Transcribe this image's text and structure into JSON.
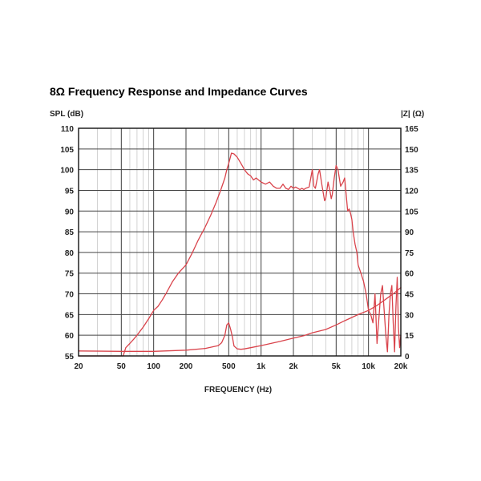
{
  "chart_data": {
    "type": "line",
    "title": "8Ω Frequency Response and Impedance Curves",
    "xlabel": "FREQUENCY (Hz)",
    "ylabel_left": "SPL (dB)",
    "ylabel_right": "|Z| (Ω)",
    "x_scale": "log",
    "xlim": [
      20,
      20000
    ],
    "ylim_left": [
      55,
      110
    ],
    "ylim_right": [
      0,
      165
    ],
    "x_tick_values": [
      20,
      50,
      100,
      200,
      500,
      1000,
      2000,
      5000,
      10000,
      20000
    ],
    "x_tick_labels": [
      "20",
      "50",
      "100",
      "200",
      "500",
      "1k",
      "2k",
      "5k",
      "10k",
      "20k"
    ],
    "y_left_ticks": [
      "110",
      "105",
      "100",
      "95",
      "90",
      "85",
      "80",
      "75",
      "70",
      "65",
      "60",
      "55"
    ],
    "y_right_ticks": [
      "165",
      "150",
      "135",
      "120",
      "105",
      "90",
      "75",
      "60",
      "45",
      "30",
      "15",
      "0"
    ],
    "grid": true,
    "line_color": "#d9434b",
    "series": [
      {
        "axis": "left",
        "x": [
          20,
          52,
          55,
          60,
          65,
          70,
          80,
          90,
          100,
          110,
          120,
          130,
          150,
          170,
          200,
          230,
          260,
          300,
          340,
          380,
          420,
          460,
          480,
          500,
          530,
          560,
          600,
          650,
          700,
          750,
          800,
          850,
          900,
          1000,
          1100,
          1200,
          1300,
          1400,
          1500,
          1600,
          1700,
          1800,
          1900,
          2000,
          2100,
          2200,
          2300,
          2400,
          2500,
          2600,
          2800,
          3000,
          3100,
          3200,
          3400,
          3500,
          3700,
          3900,
          4000,
          4200,
          4400,
          4500,
          4600,
          4800,
          5000,
          5200,
          5500,
          5800,
          6000,
          6200,
          6400,
          6600,
          6800,
          7000,
          7200,
          7500,
          7800,
          8000,
          8500,
          9000,
          9500,
          10000,
          10500,
          11000,
          11500,
          12000,
          12500,
          13000,
          13500,
          14000,
          14500,
          15000,
          15500,
          16000,
          16500,
          17000,
          17500,
          18000,
          18500,
          19000,
          19500,
          20000
        ],
        "y": [
          55,
          55,
          57,
          58,
          59,
          60,
          62,
          64,
          66,
          67,
          68.5,
          70,
          73,
          75,
          77,
          80,
          83,
          86,
          89,
          92,
          95,
          98,
          100,
          101.5,
          104,
          103.8,
          103,
          101.5,
          100,
          99,
          98.5,
          97.5,
          98,
          97,
          96.5,
          97,
          96,
          95.5,
          95.5,
          96.5,
          95.5,
          95.2,
          96,
          95.5,
          95.8,
          95.5,
          95.2,
          95.5,
          95.2,
          95.5,
          95.8,
          100,
          96,
          95.5,
          99,
          100,
          96,
          92.5,
          93,
          97,
          94.5,
          93,
          94,
          98,
          101,
          100,
          96,
          97,
          98,
          94,
          90,
          90.5,
          89.5,
          88,
          85,
          82,
          80,
          77,
          75,
          73,
          70,
          66,
          65,
          63,
          70,
          58,
          64,
          70,
          72,
          66,
          60,
          56,
          65,
          70,
          72,
          63,
          56,
          67,
          74,
          62,
          57,
          60
        ]
      },
      {
        "axis": "right",
        "x": [
          20,
          50,
          100,
          200,
          300,
          400,
          430,
          460,
          480,
          500,
          520,
          540,
          560,
          600,
          650,
          700,
          800,
          1000,
          1500,
          2000,
          2500,
          3000,
          4000,
          5000,
          6000,
          7000,
          8000,
          10000,
          12000,
          15000,
          17000,
          20000
        ],
        "y": [
          3.6,
          3.3,
          3.3,
          4.2,
          5.4,
          7.5,
          9.6,
          15,
          22.5,
          24,
          19.5,
          14,
          7.2,
          5.1,
          4.8,
          5.1,
          6,
          7.5,
          10.5,
          12.9,
          14.7,
          16.8,
          19.2,
          22.5,
          25.5,
          27.9,
          30,
          33,
          36.6,
          42,
          45,
          49.5
        ]
      }
    ]
  }
}
